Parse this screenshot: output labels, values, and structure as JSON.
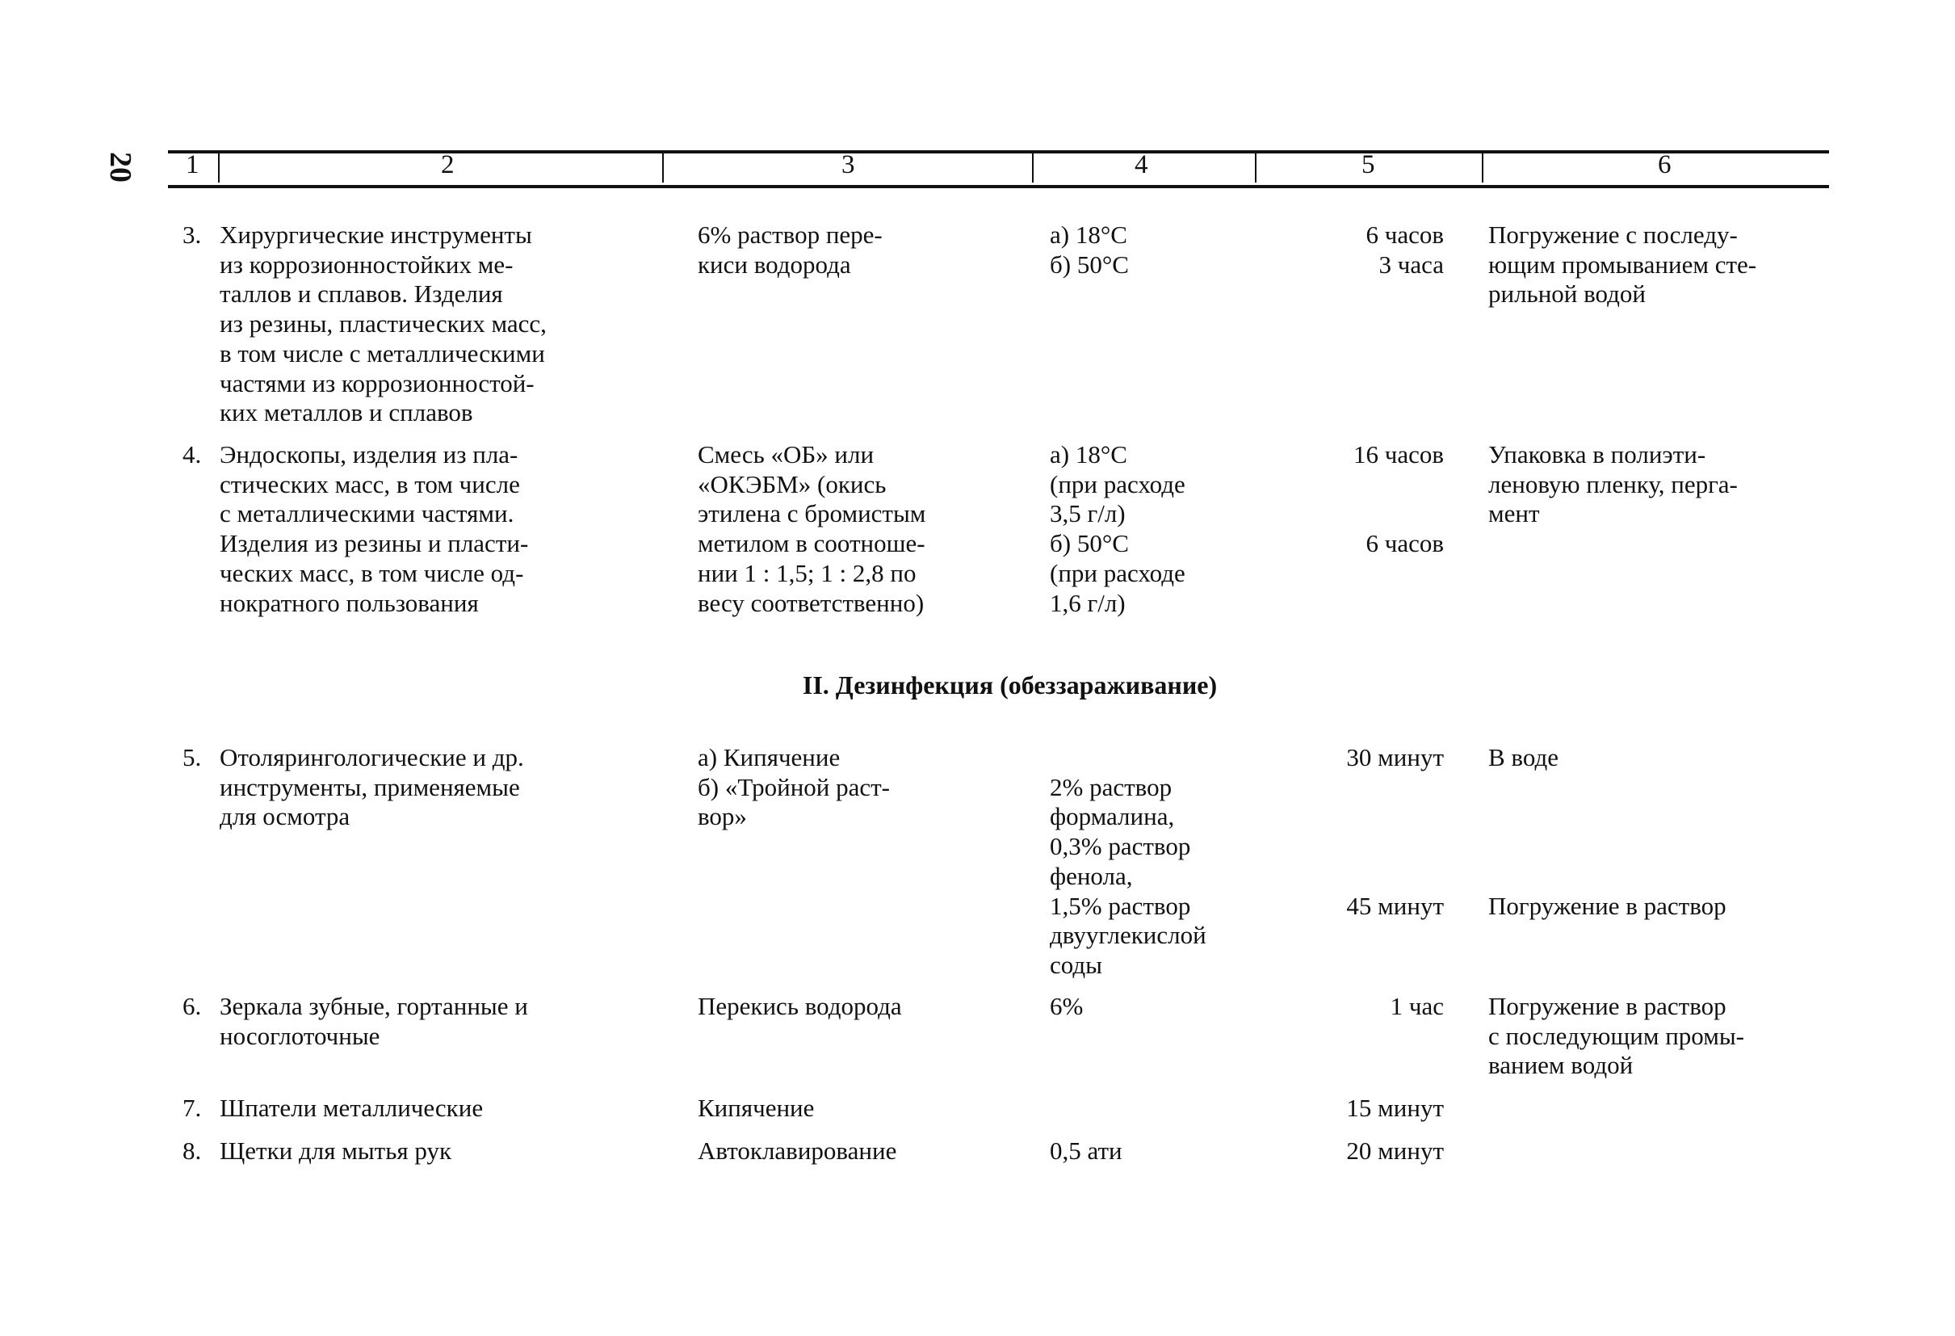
{
  "page_number": "20",
  "columns": [
    "1",
    "2",
    "3",
    "4",
    "5",
    "6"
  ],
  "section_heading": "II. Дезинфекция (обеззараживание)",
  "rows": [
    {
      "num": "3.",
      "object": "Хирургические инструменты\nиз коррозионностойких ме-\nталлов и сплавов. Изделия\nиз резины, пластических масс,\nв том числе с металлическими\nчастями из коррозионностой-\nких металлов и сплавов",
      "agent": "6% раствор пере-\nкиси водорода",
      "cond": "а) 18°С\nб) 50°С",
      "time": "6 часов\n3 часа",
      "note": "Погружение с последу-\nющим промыванием сте-\nрильной водой"
    },
    {
      "num": "4.",
      "object": "Эндоскопы, изделия из пла-\nстических масс, в том числе\nс металлическими частями.\nИзделия из резины и пласти-\nческих масс, в том числе од-\nнократного пользования",
      "agent": "Смесь «ОБ» или\n«ОКЭБМ» (окись\nэтилена с бромистым\nметилом в соотноше-\nнии 1 : 1,5; 1 : 2,8 по\nвесу соответственно)",
      "cond": "а) 18°С\n    (при расходе\n    3,5 г/л)\nб) 50°С\n    (при расходе\n    1,6 г/л)",
      "time": "16 часов\n\n\n6 часов",
      "note": "Упаковка в полиэти-\nленовую пленку, перга-\nмент"
    },
    {
      "num": "5.",
      "object": "Отоляринго­логические и др.\nинструменты, применяемые\nдля осмотра",
      "agent": "а) Кипячение\nб) «Тройной раст-\nвор»",
      "cond": "\n2% раствор\n    формалина,\n0,3% раствор\n    фенола,\n1,5% раствор\n    двууглекислой\n    соды",
      "time": "30 минут\n\n\n\n\n45 минут",
      "note": "В воде\n\n\n\n\nПогружение в раствор"
    },
    {
      "num": "6.",
      "object": "Зеркала зубные, гортанные и\nносоглоточные",
      "agent": "Перекись водорода",
      "cond": "6%",
      "time": "1 час",
      "note": "Погружение в раствор\nс последующим промы-\nванием водой"
    },
    {
      "num": "7.",
      "object": "Шпатели металлические",
      "agent": "Кипячение",
      "cond": "",
      "time": "15 минут",
      "note": ""
    },
    {
      "num": "8.",
      "object": "Щетки для мытья рук",
      "agent": "Автоклавирование",
      "cond": "0,5 ати",
      "time": "20 минут",
      "note": ""
    }
  ]
}
